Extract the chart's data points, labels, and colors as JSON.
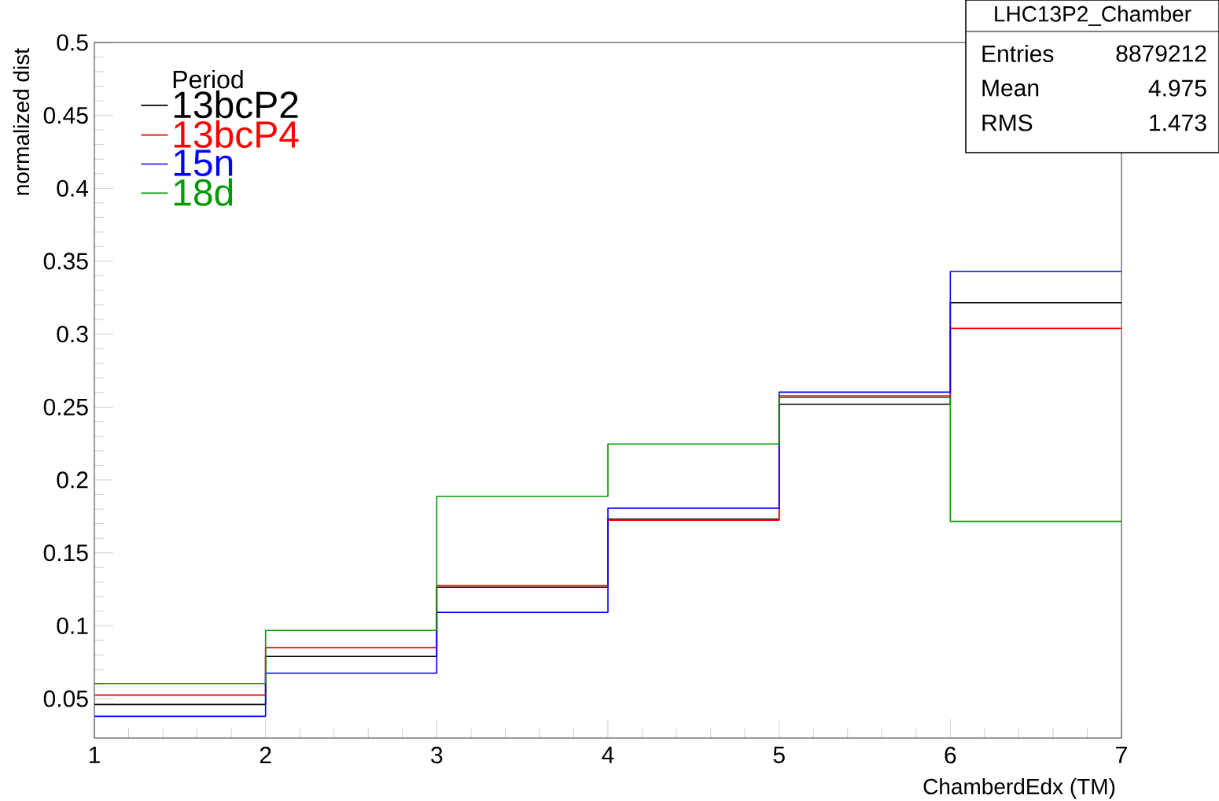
{
  "chart_data": {
    "type": "histogram",
    "xlabel": "ChamberdEdx (TM)",
    "ylabel": "normalized dist",
    "legend_title": "Period",
    "legend": "top left",
    "bins": [
      1,
      2,
      3,
      4,
      5,
      6,
      7
    ],
    "series": [
      {
        "name": "13bcP2",
        "color": "#000000",
        "values": [
          0.046,
          0.079,
          0.1265,
          0.1731,
          0.2519,
          0.3215
        ]
      },
      {
        "name": "13bcP4",
        "color": "#ff0000",
        "values": [
          0.0525,
          0.085,
          0.1275,
          0.1724,
          0.2577,
          0.3039
        ]
      },
      {
        "name": "15n",
        "color": "#0000ff",
        "values": [
          0.0379,
          0.0675,
          0.1092,
          0.1806,
          0.2602,
          0.343
        ]
      },
      {
        "name": "18d",
        "color": "#009900",
        "values": [
          0.0604,
          0.0968,
          0.1888,
          0.2247,
          0.2566,
          0.1716
        ]
      }
    ],
    "xlim": [
      1,
      7
    ],
    "ylim": [
      0.023,
      0.5
    ],
    "xticks": [
      1,
      2,
      3,
      4,
      5,
      6,
      7
    ],
    "yticks": [
      0.05,
      0.1,
      0.15,
      0.2,
      0.25,
      0.3,
      0.35,
      0.4,
      0.45,
      0.5
    ],
    "grid": false,
    "annotations": [
      "LHC13P2_Chamber",
      "Entries",
      "8879212",
      "Mean",
      "4.975",
      "RMS",
      "1.473"
    ]
  }
}
